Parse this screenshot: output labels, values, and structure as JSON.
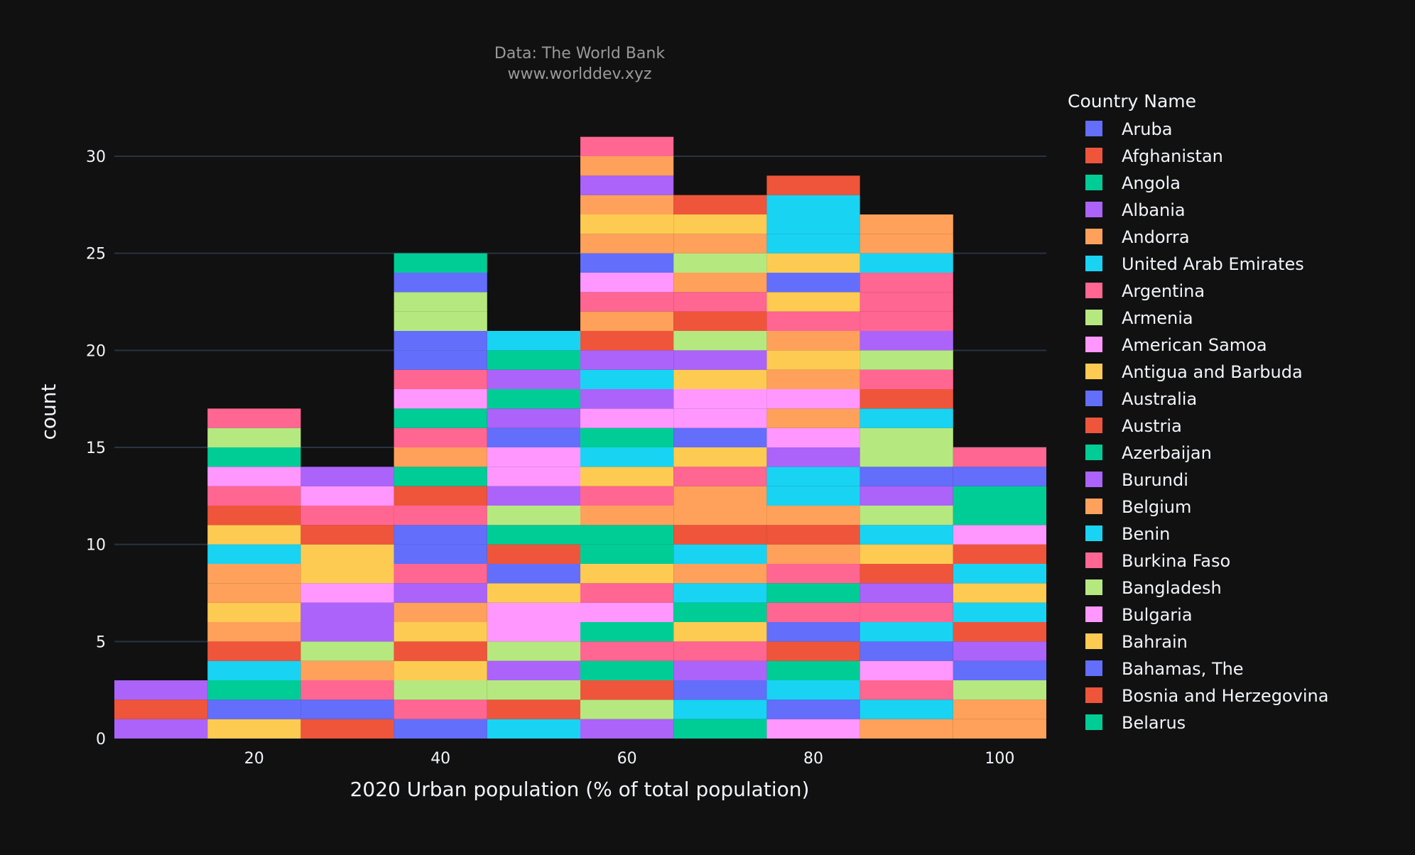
{
  "chart_data": {
    "type": "bar",
    "title": "Data: The World Bank",
    "subtitle": "www.worlddev.xyz",
    "xlabel": "2020 Urban population (% of total population)",
    "ylabel": "count",
    "bins": {
      "start": 5,
      "size": 10,
      "count": 10
    },
    "xlim": [
      5,
      105
    ],
    "ylim": [
      0,
      33
    ],
    "x_ticks": [
      20,
      40,
      60,
      80,
      100
    ],
    "x_tick_labels": [
      "20",
      "40",
      "60",
      "80",
      "100"
    ],
    "y_ticks": [
      0,
      5,
      10,
      15,
      20,
      25,
      30
    ],
    "y_tick_labels": [
      "0",
      "5",
      "10",
      "15",
      "20",
      "25",
      "30"
    ],
    "bin_totals": [
      3,
      17,
      15,
      25,
      21,
      32,
      29,
      28,
      29,
      15
    ],
    "grid": true,
    "legend_title": "Country Name",
    "legend_position": "right",
    "legend_entries": [
      "Aruba",
      "Afghanistan",
      "Angola",
      "Albania",
      "Andorra",
      "United Arab Emirates",
      "Argentina",
      "Armenia",
      "American Samoa",
      "Antigua and Barbuda",
      "Australia",
      "Austria",
      "Azerbaijan",
      "Burundi",
      "Belgium",
      "Benin",
      "Burkina Faso",
      "Bangladesh",
      "Bulgaria",
      "Bahrain",
      "Bahamas, The",
      "Bosnia and Herzegovina",
      "Belarus"
    ],
    "palette": [
      "#636efa",
      "#EF553B",
      "#00cc96",
      "#ab63fa",
      "#FFA15A",
      "#19d3f3",
      "#FF6692",
      "#B6E880",
      "#FF97FF",
      "#FECB52"
    ],
    "stacks": [
      [
        3,
        1,
        3
      ],
      [
        9,
        0,
        2,
        5,
        1,
        4,
        9,
        4,
        4,
        5,
        9,
        1,
        6,
        8,
        2,
        7,
        6
      ],
      [
        1,
        0,
        6,
        4,
        7,
        3,
        3,
        8,
        9,
        9,
        1,
        6,
        8,
        3
      ],
      [
        0,
        6,
        7,
        9,
        1,
        9,
        4,
        3,
        6,
        0,
        0,
        6,
        1,
        2,
        4,
        6,
        2,
        8,
        6,
        0,
        0,
        7,
        7,
        0,
        2
      ],
      [
        5,
        1,
        7,
        3,
        7,
        8,
        8,
        9,
        0,
        1,
        2,
        7,
        3,
        8,
        8,
        0,
        3,
        2,
        3,
        2,
        5
      ],
      [
        3,
        7,
        1,
        2,
        6,
        2,
        8,
        6,
        9,
        2,
        2,
        4,
        6,
        9,
        5,
        2,
        8,
        3,
        5,
        3,
        1,
        4,
        6,
        8,
        0,
        4,
        9,
        4,
        3,
        4,
        6
      ],
      [
        2,
        5,
        0,
        3,
        6,
        9,
        2,
        5,
        4,
        5,
        1,
        4,
        4,
        6,
        9,
        0,
        8,
        8,
        9,
        3,
        7,
        1,
        6,
        4,
        7,
        4,
        9,
        1
      ],
      [
        8,
        0,
        5,
        2,
        1,
        0,
        6,
        2,
        6,
        4,
        1,
        4,
        5,
        5,
        3,
        8,
        4,
        8,
        4,
        9,
        4,
        6,
        9,
        0,
        9,
        5,
        5,
        5,
        1
      ],
      [
        4,
        5,
        6,
        8,
        0,
        5,
        6,
        3,
        1,
        9,
        5,
        7,
        3,
        0,
        7,
        7,
        5,
        1,
        6,
        7,
        3,
        6,
        6,
        6,
        5,
        4,
        4
      ],
      [
        4,
        4,
        7,
        0,
        3,
        1,
        5,
        9,
        5,
        1,
        8,
        2,
        2,
        0,
        6
      ]
    ]
  }
}
